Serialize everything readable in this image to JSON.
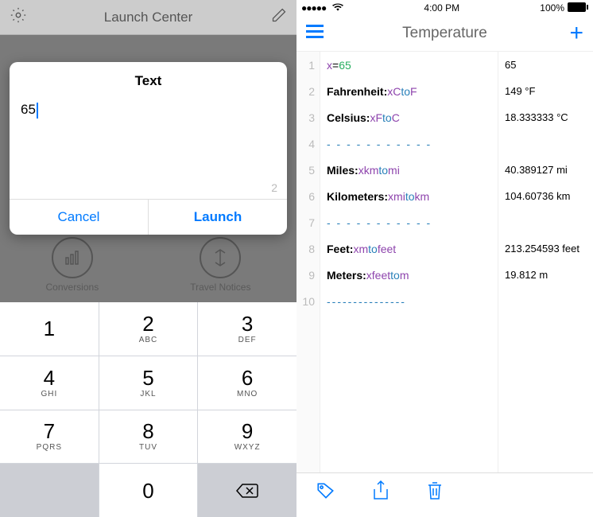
{
  "left": {
    "header_title": "Launch Center",
    "modal": {
      "title": "Text",
      "input_value": "65",
      "char_count": "2",
      "cancel_label": "Cancel",
      "launch_label": "Launch"
    },
    "home_icons": [
      {
        "label": "Conversions"
      },
      {
        "label": "Travel Notices"
      }
    ],
    "keypad": [
      {
        "num": "1",
        "letters": ""
      },
      {
        "num": "2",
        "letters": "ABC"
      },
      {
        "num": "3",
        "letters": "DEF"
      },
      {
        "num": "4",
        "letters": "GHI"
      },
      {
        "num": "5",
        "letters": "JKL"
      },
      {
        "num": "6",
        "letters": "MNO"
      },
      {
        "num": "7",
        "letters": "PQRS"
      },
      {
        "num": "8",
        "letters": "TUV"
      },
      {
        "num": "9",
        "letters": "WXYZ"
      },
      {
        "num": "",
        "letters": ""
      },
      {
        "num": "0",
        "letters": ""
      },
      {
        "num": "⌫",
        "letters": ""
      }
    ]
  },
  "right": {
    "status": {
      "time": "4:00 PM",
      "battery": "100%"
    },
    "nav_title": "Temperature",
    "lines": [
      {
        "n": "1",
        "code": {
          "label": "",
          "var": "x",
          "eq": " = ",
          "num": "65"
        },
        "result": "65"
      },
      {
        "n": "2",
        "code": {
          "label": "Fahrenheit: ",
          "expr": [
            [
              "var",
              "x"
            ],
            [
              "unit",
              " C "
            ],
            [
              "kw",
              "to"
            ],
            [
              "unit",
              " F"
            ]
          ]
        },
        "result": "149 °F"
      },
      {
        "n": "3",
        "code": {
          "label": "Celsius: ",
          "expr": [
            [
              "var",
              "x"
            ],
            [
              "unit",
              " F "
            ],
            [
              "kw",
              "to"
            ],
            [
              "unit",
              " C"
            ]
          ]
        },
        "result": "18.333333 °C"
      },
      {
        "n": "4",
        "code": {
          "dash": "- - - - - - - - - - -"
        },
        "result": ""
      },
      {
        "n": "5",
        "code": {
          "label": "Miles: ",
          "expr": [
            [
              "var",
              "x"
            ],
            [
              "unit",
              " km "
            ],
            [
              "kw",
              "to"
            ],
            [
              "unit",
              " mi"
            ]
          ]
        },
        "result": "40.389127 mi"
      },
      {
        "n": "6",
        "code": {
          "label": "Kilometers: ",
          "expr": [
            [
              "var",
              "x"
            ],
            [
              "unit",
              " mi "
            ],
            [
              "kw",
              "to"
            ],
            [
              "unit",
              " km"
            ]
          ]
        },
        "result": "104.60736 km"
      },
      {
        "n": "7",
        "code": {
          "dash": "- - - - - - - - - - -"
        },
        "result": ""
      },
      {
        "n": "8",
        "code": {
          "label": "Feet: ",
          "expr": [
            [
              "var",
              "x"
            ],
            [
              "unit",
              " m "
            ],
            [
              "kw",
              "to"
            ],
            [
              "unit",
              " feet"
            ]
          ]
        },
        "result": "213.254593 feet"
      },
      {
        "n": "9",
        "code": {
          "label": "Meters: ",
          "expr": [
            [
              "var",
              "x"
            ],
            [
              "unit",
              " feet "
            ],
            [
              "kw",
              "to"
            ],
            [
              "unit",
              " m"
            ]
          ]
        },
        "result": "19.812 m"
      },
      {
        "n": "10",
        "code": {
          "dash": "---------------"
        },
        "result": ""
      }
    ]
  },
  "colors": {
    "accent": "#007aff",
    "var": "#8e44ad",
    "num": "#27ae60",
    "kw": "#2980b9"
  }
}
